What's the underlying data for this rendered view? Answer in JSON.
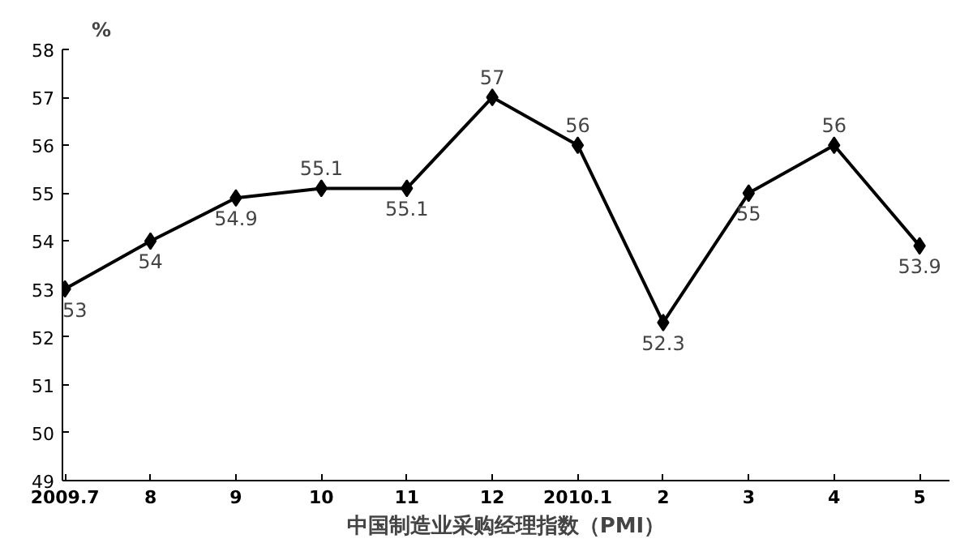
{
  "chart_data": {
    "type": "line",
    "xlabel": "中国制造业采购经理指数（PMI）",
    "ylabel": "%",
    "categories": [
      "2009.7",
      "8",
      "9",
      "10",
      "11",
      "12",
      "2010.1",
      "2",
      "3",
      "4",
      "5"
    ],
    "series": [
      {
        "color": "#000000",
        "values": [
          53,
          54,
          54.9,
          55.1,
          55.1,
          57,
          56,
          52.3,
          55,
          56,
          53.9
        ]
      }
    ],
    "ylim": [
      49,
      58
    ],
    "yticks": [
      49,
      50,
      51,
      52,
      53,
      54,
      55,
      56,
      57,
      58
    ],
    "marker": "diamond",
    "line_style": "solid",
    "data_labels": true,
    "grid": false
  }
}
